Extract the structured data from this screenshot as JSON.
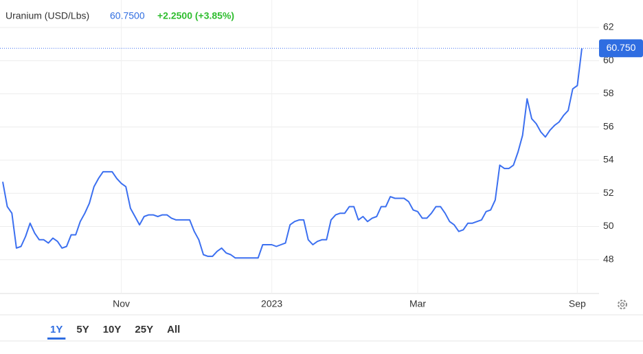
{
  "chart_data": {
    "type": "line",
    "title": "Uranium (USD/Lbs)",
    "price": "60.7500",
    "change": "+2.2500 (+3.85%)",
    "last_value_label": "60.750",
    "ranges": [
      "1Y",
      "5Y",
      "10Y",
      "25Y",
      "All"
    ],
    "active_range": 0,
    "categories": [
      null,
      null,
      null,
      null,
      null,
      null,
      null,
      null,
      null,
      null,
      null,
      null,
      null,
      null,
      null,
      null,
      null,
      null,
      null,
      null,
      null,
      null,
      null,
      null,
      null,
      null,
      "Nov",
      null,
      null,
      null,
      null,
      null,
      null,
      null,
      null,
      null,
      null,
      null,
      null,
      null,
      null,
      null,
      null,
      null,
      null,
      null,
      null,
      null,
      null,
      null,
      null,
      null,
      null,
      null,
      null,
      null,
      null,
      null,
      null,
      "2023",
      null,
      null,
      null,
      null,
      null,
      null,
      null,
      null,
      null,
      null,
      null,
      null,
      null,
      null,
      null,
      null,
      null,
      null,
      null,
      null,
      null,
      null,
      null,
      null,
      null,
      null,
      null,
      null,
      null,
      null,
      null,
      "Mar",
      null,
      null,
      null,
      null,
      null,
      null,
      null,
      null,
      null,
      null,
      null,
      null,
      null,
      null,
      null,
      null,
      null,
      null,
      null,
      null,
      null,
      null,
      null,
      null,
      null,
      null,
      null,
      null,
      null,
      null,
      null,
      null,
      null,
      null,
      "Sep",
      null
    ],
    "series": [
      {
        "name": "Uranium",
        "color": "#3b6ff0",
        "values": [
          52.7,
          51.2,
          50.8,
          48.7,
          48.8,
          49.4,
          50.2,
          49.6,
          49.2,
          49.2,
          49.0,
          49.3,
          49.1,
          48.7,
          48.8,
          49.5,
          49.5,
          50.3,
          50.8,
          51.4,
          52.4,
          52.9,
          53.3,
          53.3,
          53.3,
          52.9,
          52.6,
          52.4,
          51.1,
          50.6,
          50.1,
          50.6,
          50.7,
          50.7,
          50.6,
          50.7,
          50.7,
          50.5,
          50.4,
          50.4,
          50.4,
          50.4,
          49.7,
          49.2,
          48.3,
          48.2,
          48.2,
          48.5,
          48.7,
          48.4,
          48.3,
          48.1,
          48.1,
          48.1,
          48.1,
          48.1,
          48.1,
          48.9,
          48.9,
          48.9,
          48.8,
          48.9,
          49.0,
          50.1,
          50.3,
          50.4,
          50.4,
          49.2,
          48.9,
          49.1,
          49.2,
          49.2,
          50.4,
          50.7,
          50.8,
          50.8,
          51.2,
          51.2,
          50.4,
          50.6,
          50.3,
          50.5,
          50.6,
          51.2,
          51.2,
          51.8,
          51.7,
          51.7,
          51.7,
          51.5,
          51.0,
          50.9,
          50.5,
          50.5,
          50.8,
          51.2,
          51.2,
          50.8,
          50.3,
          50.1,
          49.7,
          49.8,
          50.2,
          50.2,
          50.3,
          50.4,
          50.9,
          51.0,
          51.6,
          53.7,
          53.5,
          53.5,
          53.7,
          54.5,
          55.5,
          57.7,
          56.5,
          56.2,
          55.7,
          55.4,
          55.8,
          56.1,
          56.3,
          56.7,
          57.0,
          58.3,
          58.5,
          60.75
        ]
      }
    ],
    "ylim": [
      46,
      63.66
    ],
    "yticks": [
      48,
      50,
      52,
      54,
      56,
      58,
      60,
      62
    ],
    "grid": true
  }
}
